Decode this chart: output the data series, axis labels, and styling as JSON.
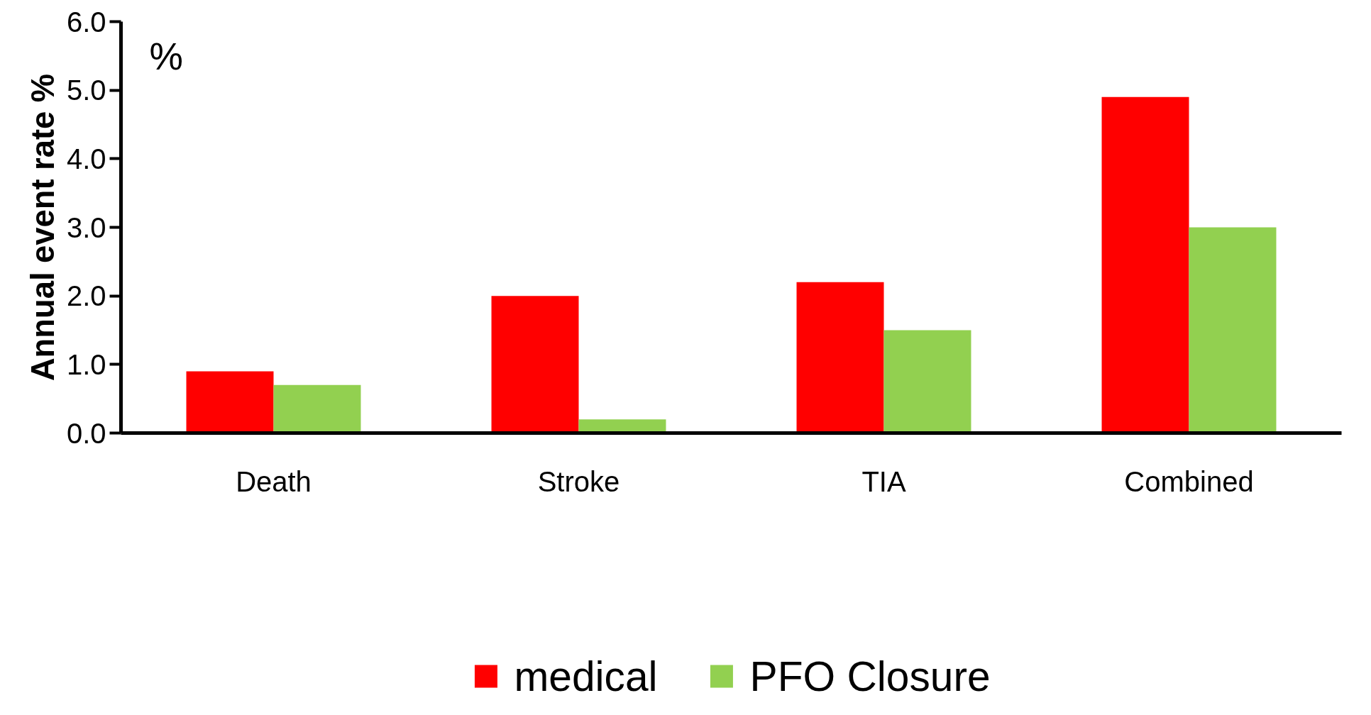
{
  "chart_data": {
    "type": "bar",
    "ylabel": "Annual event rate %",
    "annotations": [
      "%"
    ],
    "categories": [
      "Death",
      "Stroke",
      "TIA",
      "Combined"
    ],
    "series": [
      {
        "name": "medical",
        "color": "#ff0000",
        "values": [
          0.9,
          2.0,
          2.2,
          4.9
        ]
      },
      {
        "name": "PFO Closure",
        "color": "#92d050",
        "values": [
          0.7,
          0.2,
          1.5,
          3.0
        ]
      }
    ],
    "ylim": [
      0,
      6
    ],
    "yticks": [
      {
        "value": 0,
        "label": "0.0"
      },
      {
        "value": 1,
        "label": "1.0"
      },
      {
        "value": 2,
        "label": "2.0"
      },
      {
        "value": 3,
        "label": "3.0"
      },
      {
        "value": 4,
        "label": "4.0"
      },
      {
        "value": 5,
        "label": "5.0"
      },
      {
        "value": 6,
        "label": "6.0"
      }
    ],
    "grid": false,
    "legend": "bottom"
  }
}
